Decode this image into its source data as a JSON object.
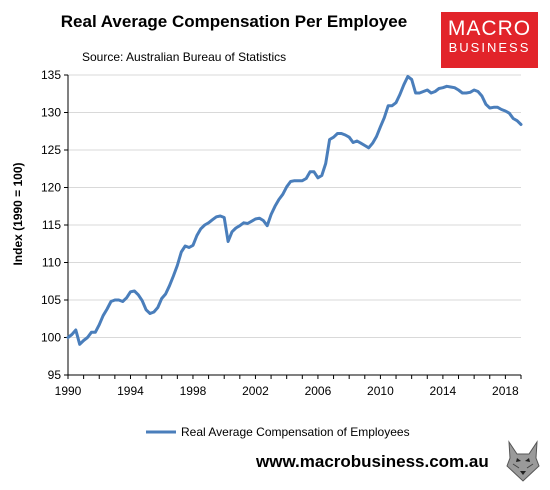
{
  "header": {
    "title": "Real Average Compensation Per Employee",
    "source": "Source: Australian Bureau of Statistics"
  },
  "logo": {
    "line1": "MACRO",
    "line2": "BUSINESS",
    "color": "#e2242a"
  },
  "footer": {
    "url": "www.macrobusiness.com.au",
    "wolf_icon": "wolf-head-icon"
  },
  "chart_data": {
    "type": "line",
    "title": "Real Average Compensation Per Employee",
    "xlabel": "",
    "ylabel": "Index (1990 = 100)",
    "xlim": [
      1990,
      2019
    ],
    "ylim": [
      95,
      135
    ],
    "x_ticks": [
      1990,
      1994,
      1998,
      2002,
      2006,
      2010,
      2014,
      2018
    ],
    "y_ticks": [
      95,
      100,
      105,
      110,
      115,
      120,
      125,
      130,
      135
    ],
    "grid": true,
    "legend_position": "bottom",
    "series": [
      {
        "name": "Real Average Compensation of Employees",
        "color": "#4a7ebb",
        "x": [
          1990.0,
          1990.25,
          1990.5,
          1990.75,
          1991.0,
          1991.25,
          1991.5,
          1991.75,
          1992.0,
          1992.25,
          1992.5,
          1992.75,
          1993.0,
          1993.25,
          1993.5,
          1993.75,
          1994.0,
          1994.25,
          1994.5,
          1994.75,
          1995.0,
          1995.25,
          1995.5,
          1995.75,
          1996.0,
          1996.25,
          1996.5,
          1996.75,
          1997.0,
          1997.25,
          1997.5,
          1997.75,
          1998.0,
          1998.25,
          1998.5,
          1998.75,
          1999.0,
          1999.25,
          1999.5,
          1999.75,
          2000.0,
          2000.25,
          2000.5,
          2000.75,
          2001.0,
          2001.25,
          2001.5,
          2001.75,
          2002.0,
          2002.25,
          2002.5,
          2002.75,
          2003.0,
          2003.25,
          2003.5,
          2003.75,
          2004.0,
          2004.25,
          2004.5,
          2004.75,
          2005.0,
          2005.25,
          2005.5,
          2005.75,
          2006.0,
          2006.25,
          2006.5,
          2006.75,
          2007.0,
          2007.25,
          2007.5,
          2007.75,
          2008.0,
          2008.25,
          2008.5,
          2008.75,
          2009.0,
          2009.25,
          2009.5,
          2009.75,
          2010.0,
          2010.25,
          2010.5,
          2010.75,
          2011.0,
          2011.25,
          2011.5,
          2011.75,
          2012.0,
          2012.25,
          2012.5,
          2012.75,
          2013.0,
          2013.25,
          2013.5,
          2013.75,
          2014.0,
          2014.25,
          2014.5,
          2014.75,
          2015.0,
          2015.25,
          2015.5,
          2015.75,
          2016.0,
          2016.25,
          2016.5,
          2016.75,
          2017.0,
          2017.25,
          2017.5,
          2017.75,
          2018.0,
          2018.25,
          2018.5,
          2018.75,
          2019.0
        ],
        "values": [
          100.0,
          100.4,
          101.0,
          99.1,
          99.6,
          100.0,
          100.7,
          100.7,
          101.7,
          102.9,
          103.8,
          104.8,
          105.0,
          105.0,
          104.8,
          105.3,
          106.1,
          106.2,
          105.7,
          104.9,
          103.7,
          103.2,
          103.4,
          104.0,
          105.2,
          105.8,
          106.9,
          108.2,
          109.6,
          111.4,
          112.2,
          112.0,
          112.3,
          113.6,
          114.5,
          115.0,
          115.3,
          115.7,
          116.1,
          116.2,
          116.0,
          112.8,
          114.1,
          114.6,
          114.9,
          115.3,
          115.2,
          115.5,
          115.8,
          115.9,
          115.6,
          114.9,
          116.4,
          117.5,
          118.4,
          119.1,
          120.1,
          120.8,
          120.9,
          120.9,
          120.9,
          121.2,
          122.1,
          122.1,
          121.3,
          121.6,
          123.2,
          126.4,
          126.7,
          127.2,
          127.2,
          127.0,
          126.7,
          126.0,
          126.2,
          125.9,
          125.6,
          125.3,
          125.9,
          126.8,
          128.1,
          129.3,
          130.9,
          130.9,
          131.3,
          132.4,
          133.7,
          134.8,
          134.4,
          132.6,
          132.6,
          132.8,
          133.0,
          132.6,
          132.8,
          133.2,
          133.3,
          133.5,
          133.4,
          133.3,
          133.0,
          132.6,
          132.6,
          132.7,
          133.0,
          132.8,
          132.2,
          131.1,
          130.6,
          130.7,
          130.7,
          130.4,
          130.2,
          129.9,
          129.2,
          128.9,
          128.4
        ]
      }
    ]
  }
}
